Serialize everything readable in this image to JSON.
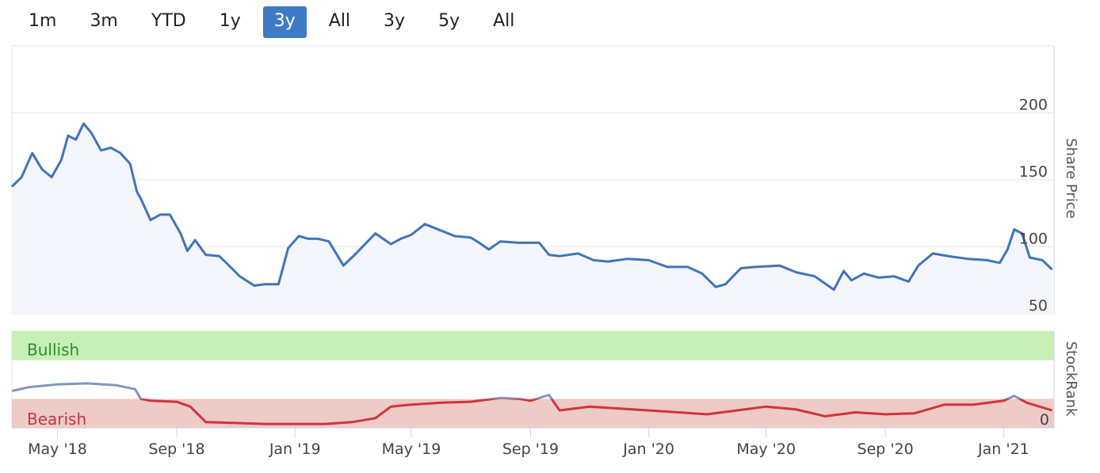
{
  "range_selector": {
    "buttons": [
      {
        "label": "1m",
        "active": false
      },
      {
        "label": "3m",
        "active": false
      },
      {
        "label": "YTD",
        "active": false
      },
      {
        "label": "1y",
        "active": false
      },
      {
        "label": "3y",
        "active": true
      },
      {
        "label": "All",
        "active": false
      },
      {
        "label": "3y",
        "active": false
      },
      {
        "label": "5y",
        "active": false
      },
      {
        "label": "All",
        "active": false
      }
    ]
  },
  "chart_data": [
    {
      "type": "area",
      "ylabel": "Share Price",
      "ylim": [
        50,
        250
      ],
      "yticks": [
        50,
        100,
        150,
        200
      ],
      "grid": true,
      "color": "#3f74bd",
      "fill_color": "#f4f6fb",
      "series": [
        {
          "x": [
            "2018-03-15",
            "2018-03-25",
            "2018-04-05",
            "2018-04-15",
            "2018-04-25",
            "2018-05-05",
            "2018-05-12",
            "2018-05-20",
            "2018-05-28",
            "2018-06-05",
            "2018-06-15",
            "2018-06-25",
            "2018-07-05",
            "2018-07-15",
            "2018-07-22",
            "2018-07-26",
            "2018-08-05",
            "2018-08-15",
            "2018-08-25",
            "2018-09-05",
            "2018-09-12",
            "2018-09-20",
            "2018-10-01",
            "2018-10-15",
            "2018-10-25",
            "2018-11-05",
            "2018-11-20",
            "2018-12-01",
            "2018-12-15",
            "2018-12-25",
            "2019-01-05",
            "2019-01-15",
            "2019-01-25",
            "2019-02-05",
            "2019-02-20",
            "2019-03-05",
            "2019-03-25",
            "2019-04-10",
            "2019-04-20",
            "2019-05-01",
            "2019-05-15",
            "2019-06-01",
            "2019-06-15",
            "2019-07-01",
            "2019-07-10",
            "2019-07-20",
            "2019-08-01",
            "2019-08-20",
            "2019-09-10",
            "2019-09-20",
            "2019-10-01",
            "2019-10-20",
            "2019-11-05",
            "2019-11-20",
            "2019-12-10",
            "2020-01-01",
            "2020-01-20",
            "2020-02-10",
            "2020-02-25",
            "2020-03-10",
            "2020-03-20",
            "2020-04-05",
            "2020-04-20",
            "2020-05-15",
            "2020-06-01",
            "2020-06-20",
            "2020-07-10",
            "2020-07-20",
            "2020-07-28",
            "2020-08-10",
            "2020-08-25",
            "2020-09-10",
            "2020-09-25",
            "2020-10-05",
            "2020-10-20",
            "2020-11-05",
            "2020-11-25",
            "2020-12-15",
            "2020-12-28",
            "2021-01-05",
            "2021-01-12",
            "2021-01-20",
            "2021-01-28",
            "2021-02-10",
            "2021-02-20"
          ],
          "y": [
            145,
            152,
            170,
            158,
            152,
            165,
            183,
            180,
            192,
            185,
            172,
            174,
            170,
            162,
            141,
            136,
            120,
            124,
            124,
            110,
            97,
            105,
            94,
            93,
            86,
            78,
            71,
            72,
            72,
            99,
            108,
            106,
            106,
            104,
            86,
            95,
            110,
            102,
            106,
            109,
            117,
            112,
            108,
            107,
            103,
            98,
            104,
            103,
            103,
            94,
            93,
            95,
            90,
            89,
            91,
            90,
            85,
            85,
            80,
            70,
            72,
            84,
            85,
            86,
            81,
            78,
            68,
            82,
            75,
            80,
            77,
            78,
            74,
            86,
            95,
            93,
            91,
            90,
            88,
            98,
            113,
            110,
            92,
            90,
            83
          ]
        }
      ]
    },
    {
      "type": "line",
      "ylabel": "StockRank",
      "ylim": [
        0,
        100
      ],
      "yticks": [
        0
      ],
      "bands": [
        {
          "label": "Bullish",
          "from": 70,
          "to": 100,
          "color": "#c6f0b5",
          "text_color": "#2e8b2e"
        },
        {
          "label": "Bearish",
          "from": 0,
          "to": 30,
          "color": "#eecbc7",
          "text_color": "#c9343f"
        }
      ],
      "threshold": 30,
      "above_color": "#7f98c2",
      "below_color": "#d0343f",
      "series": [
        {
          "x": [
            "2018-03-15",
            "2018-04-01",
            "2018-05-01",
            "2018-06-01",
            "2018-07-01",
            "2018-07-20",
            "2018-07-26",
            "2018-08-05",
            "2018-09-01",
            "2018-09-15",
            "2018-10-01",
            "2018-11-01",
            "2018-12-01",
            "2019-01-01",
            "2019-02-01",
            "2019-03-01",
            "2019-03-25",
            "2019-04-10",
            "2019-05-01",
            "2019-06-01",
            "2019-07-01",
            "2019-08-01",
            "2019-08-20",
            "2019-09-01",
            "2019-09-20",
            "2019-10-01",
            "2019-11-01",
            "2019-12-01",
            "2020-01-01",
            "2020-02-01",
            "2020-03-01",
            "2020-04-01",
            "2020-05-01",
            "2020-06-01",
            "2020-07-01",
            "2020-08-01",
            "2020-09-01",
            "2020-10-01",
            "2020-11-01",
            "2020-12-01",
            "2021-01-01",
            "2021-01-12",
            "2021-01-25",
            "2021-02-20"
          ],
          "y": [
            38,
            42,
            45,
            46,
            44,
            40,
            30,
            28,
            27,
            22,
            6,
            5,
            4,
            4,
            4,
            6,
            10,
            22,
            24,
            26,
            27,
            31,
            30,
            28,
            34,
            18,
            22,
            20,
            18,
            16,
            14,
            18,
            22,
            19,
            12,
            16,
            14,
            15,
            24,
            24,
            28,
            33,
            26,
            18
          ]
        }
      ]
    }
  ],
  "x_axis": {
    "ticks": [
      {
        "label": "May '18",
        "date": "2018-05-01"
      },
      {
        "label": "Sep '18",
        "date": "2018-09-01"
      },
      {
        "label": "Jan '19",
        "date": "2019-01-01"
      },
      {
        "label": "May '19",
        "date": "2019-05-01"
      },
      {
        "label": "Sep '19",
        "date": "2019-09-01"
      },
      {
        "label": "Jan '20",
        "date": "2020-01-01"
      },
      {
        "label": "May '20",
        "date": "2020-05-01"
      },
      {
        "label": "Sep '20",
        "date": "2020-09-01"
      },
      {
        "label": "Jan '21",
        "date": "2021-01-01"
      }
    ]
  }
}
